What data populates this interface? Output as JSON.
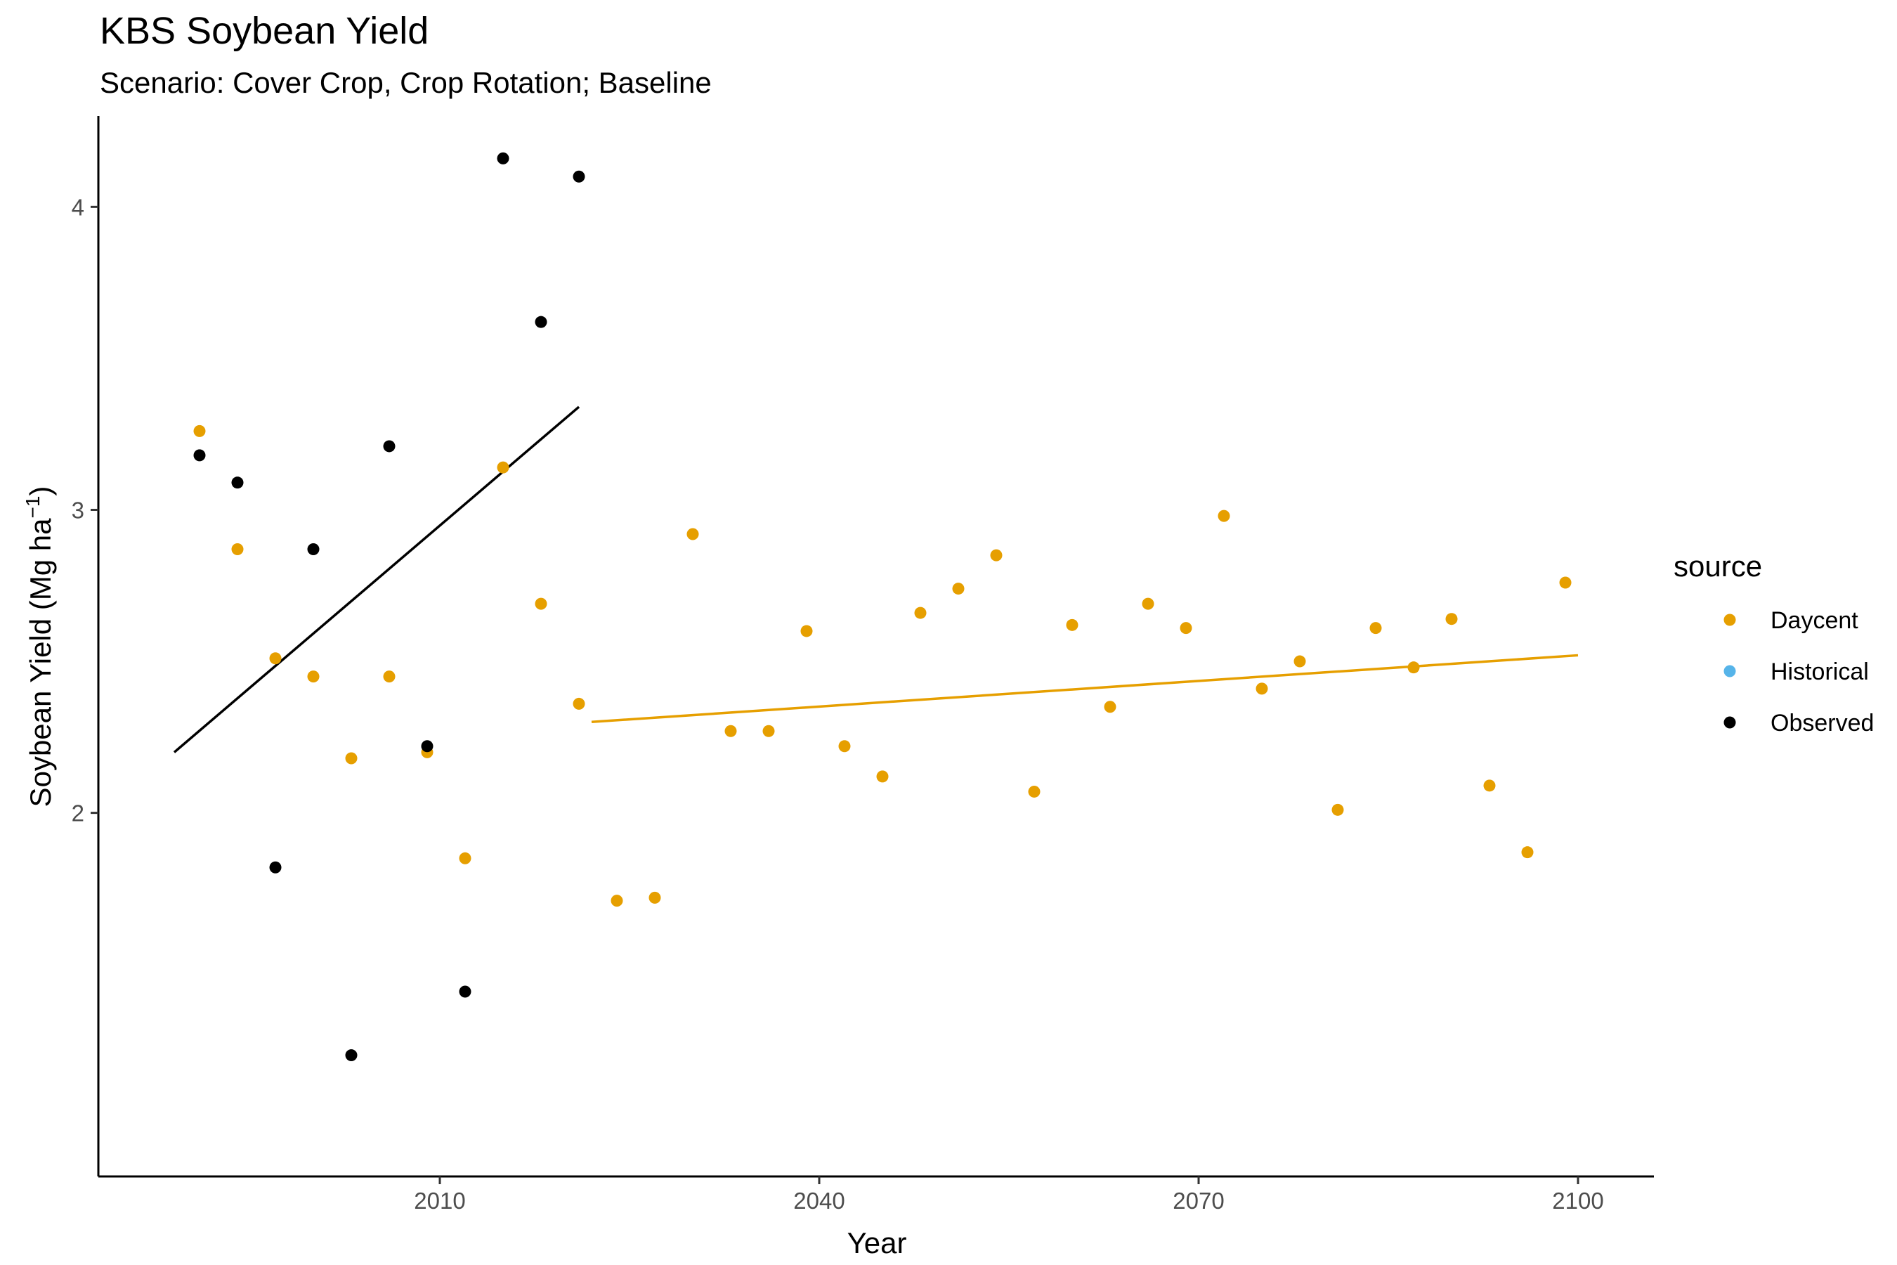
{
  "chart_data": {
    "type": "scatter",
    "title": "KBS Soybean Yield",
    "subtitle": "Scenario: Cover Crop, Crop Rotation; Baseline",
    "xlabel": "Year",
    "ylabel_main": "Soybean Yield (Mg ha",
    "ylabel_sup": "−1",
    "ylabel_close": ")",
    "xlim": [
      1983,
      2106
    ],
    "ylim": [
      0.8,
      4.3
    ],
    "x_ticks": [
      2010,
      2040,
      2070,
      2100
    ],
    "y_ticks": [
      2,
      3,
      4
    ],
    "grid": false,
    "legend": {
      "title": "source",
      "position": "right",
      "entries": [
        {
          "label": "Daycent",
          "color": "#E69F00"
        },
        {
          "label": "Historical",
          "color": "#56B4E9"
        },
        {
          "label": "Observed",
          "color": "#000000"
        }
      ]
    },
    "series": [
      {
        "name": "Observed",
        "color": "#000000",
        "x": [
          1991,
          1994,
          1997,
          2000,
          2003,
          2006,
          2009,
          2012,
          2015,
          2018,
          2021
        ],
        "y": [
          3.18,
          3.09,
          1.82,
          2.87,
          1.2,
          3.21,
          2.22,
          1.41,
          4.16,
          3.62,
          4.1
        ]
      },
      {
        "name": "Daycent",
        "color": "#E69F00",
        "x": [
          1991,
          1994,
          1997,
          2000,
          2003,
          2006,
          2009,
          2012,
          2015,
          2018,
          2021,
          2024,
          2027,
          2030,
          2033,
          2036,
          2039,
          2042,
          2045,
          2048,
          2051,
          2054,
          2057,
          2060,
          2063,
          2066,
          2069,
          2072,
          2075,
          2078,
          2081,
          2084,
          2087,
          2090,
          2093,
          2096,
          2099
        ],
        "y": [
          3.26,
          2.87,
          2.51,
          2.45,
          2.18,
          2.45,
          2.2,
          1.85,
          3.14,
          2.69,
          2.36,
          1.71,
          1.72,
          2.92,
          2.27,
          2.27,
          2.6,
          2.22,
          2.12,
          2.66,
          2.74,
          2.85,
          2.07,
          2.62,
          2.35,
          2.69,
          2.61,
          2.98,
          2.41,
          2.5,
          2.01,
          2.61,
          2.48,
          2.64,
          2.09,
          1.87,
          2.76
        ]
      },
      {
        "name": "Historical",
        "color": "#56B4E9",
        "x": [],
        "y": []
      }
    ],
    "trend_lines": [
      {
        "name": "Observed",
        "color": "#000000",
        "x": [
          1989,
          2021
        ],
        "y": [
          2.2,
          3.34
        ]
      },
      {
        "name": "Daycent",
        "color": "#E69F00",
        "x": [
          2022,
          2100
        ],
        "y": [
          2.3,
          2.52
        ]
      }
    ]
  }
}
